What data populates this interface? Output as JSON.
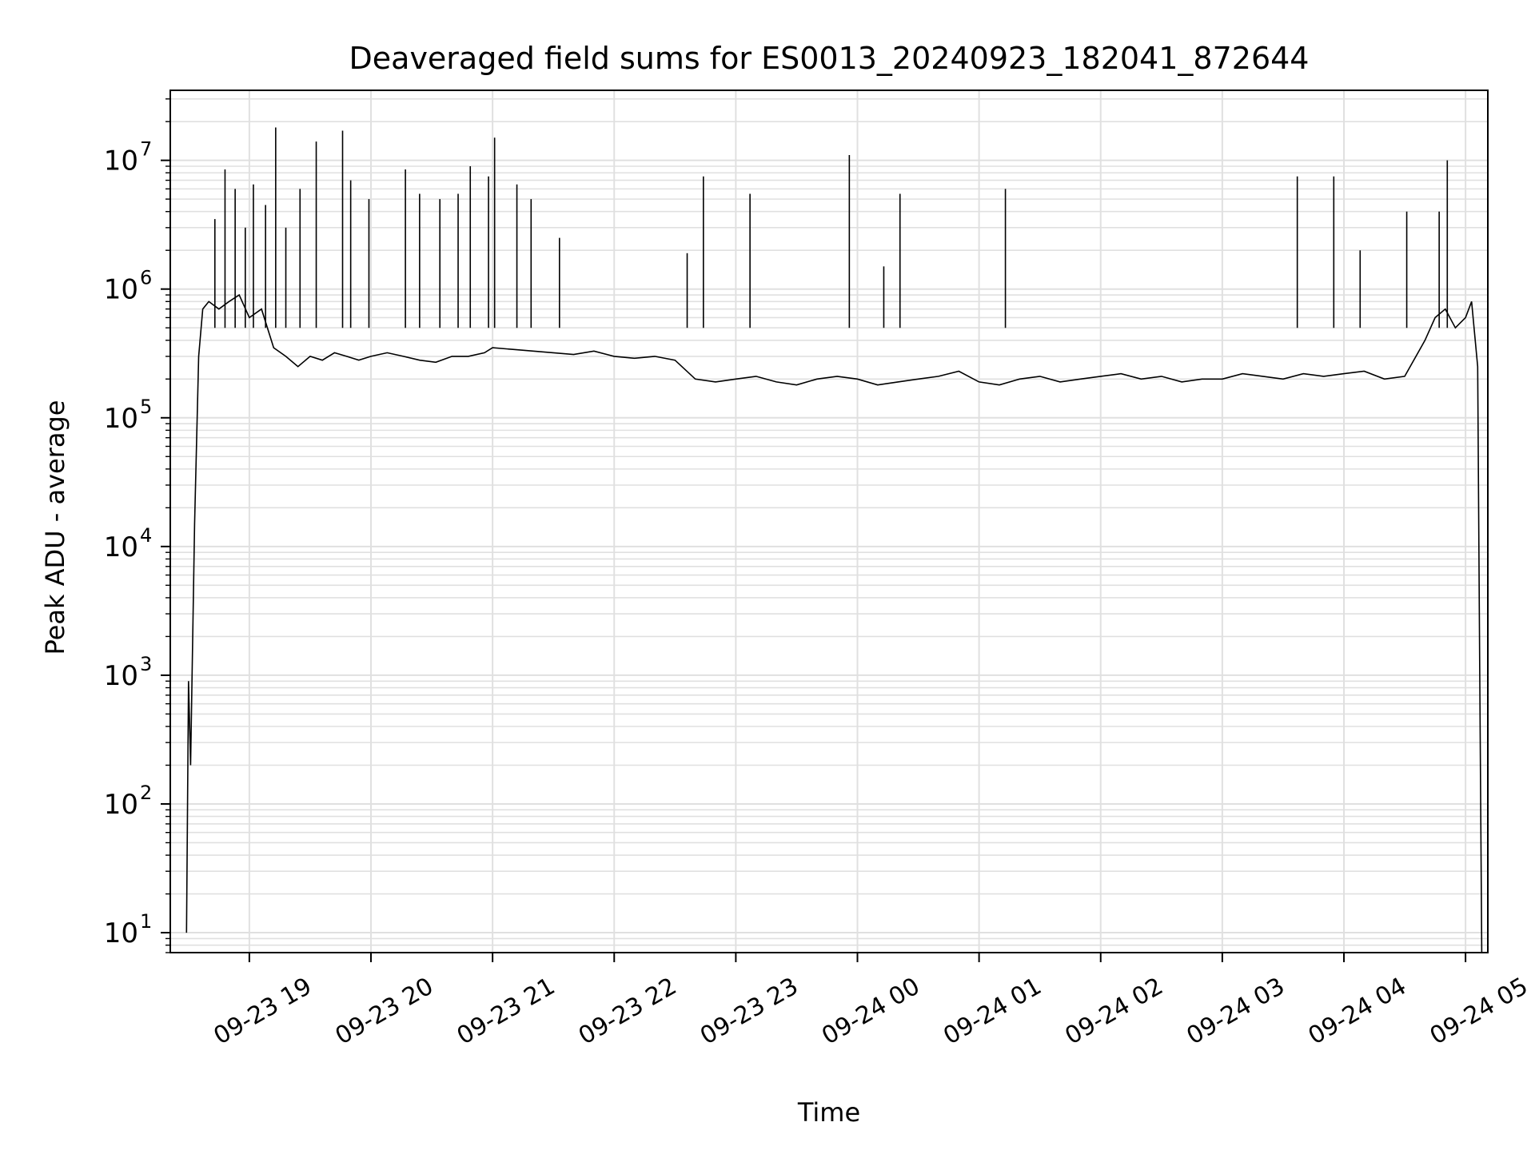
{
  "colors": {
    "line": "#000000",
    "grid": "#e0e0e0",
    "background": "#ffffff",
    "axes": "#000000"
  },
  "chart_data": {
    "type": "line",
    "title": "Deaveraged field sums for ES0013_20240923_182041_872644",
    "xlabel": "Time",
    "ylabel": "Peak ADU - average",
    "yscale": "log",
    "xlim": [
      "2024-09-23 18:21",
      "2024-09-24 05:11"
    ],
    "ylim": [
      7,
      35000000
    ],
    "grid": true,
    "legend": "none",
    "x_ticks": [
      {
        "t": "2024-09-23 19:00",
        "label": "09-23 19"
      },
      {
        "t": "2024-09-23 20:00",
        "label": "09-23 20"
      },
      {
        "t": "2024-09-23 21:00",
        "label": "09-23 21"
      },
      {
        "t": "2024-09-23 22:00",
        "label": "09-23 22"
      },
      {
        "t": "2024-09-23 23:00",
        "label": "09-23 23"
      },
      {
        "t": "2024-09-24 00:00",
        "label": "09-24 00"
      },
      {
        "t": "2024-09-24 01:00",
        "label": "09-24 01"
      },
      {
        "t": "2024-09-24 02:00",
        "label": "09-24 02"
      },
      {
        "t": "2024-09-24 03:00",
        "label": "09-24 03"
      },
      {
        "t": "2024-09-24 04:00",
        "label": "09-24 04"
      },
      {
        "t": "2024-09-24 05:00",
        "label": "09-24 05"
      }
    ],
    "y_ticks": [
      {
        "value": 10,
        "base": "10",
        "exp": "1"
      },
      {
        "value": 100,
        "base": "10",
        "exp": "2"
      },
      {
        "value": 1000,
        "base": "10",
        "exp": "3"
      },
      {
        "value": 10000,
        "base": "10",
        "exp": "4"
      },
      {
        "value": 100000,
        "base": "10",
        "exp": "5"
      },
      {
        "value": 1000000,
        "base": "10",
        "exp": "6"
      },
      {
        "value": 10000000,
        "base": "10",
        "exp": "7"
      }
    ],
    "series": [
      {
        "x": [
          "2024-09-23 18:29",
          "2024-09-23 18:30",
          "2024-09-23 18:31",
          "2024-09-23 18:33",
          "2024-09-23 18:35",
          "2024-09-23 18:37",
          "2024-09-23 18:40",
          "2024-09-23 18:45",
          "2024-09-23 18:50",
          "2024-09-23 18:55",
          "2024-09-23 19:00",
          "2024-09-23 19:06",
          "2024-09-23 19:12",
          "2024-09-23 19:18",
          "2024-09-23 19:24",
          "2024-09-23 19:30",
          "2024-09-23 19:36",
          "2024-09-23 19:42",
          "2024-09-23 19:48",
          "2024-09-23 19:54",
          "2024-09-23 20:00",
          "2024-09-23 20:08",
          "2024-09-23 20:16",
          "2024-09-23 20:24",
          "2024-09-23 20:32",
          "2024-09-23 20:40",
          "2024-09-23 20:48",
          "2024-09-23 20:56",
          "2024-09-23 21:00",
          "2024-09-23 21:10",
          "2024-09-23 21:20",
          "2024-09-23 21:30",
          "2024-09-23 21:40",
          "2024-09-23 21:50",
          "2024-09-23 22:00",
          "2024-09-23 22:10",
          "2024-09-23 22:20",
          "2024-09-23 22:30",
          "2024-09-23 22:40",
          "2024-09-23 22:50",
          "2024-09-23 23:00",
          "2024-09-23 23:10",
          "2024-09-23 23:20",
          "2024-09-23 23:30",
          "2024-09-23 23:40",
          "2024-09-23 23:50",
          "2024-09-24 00:00",
          "2024-09-24 00:10",
          "2024-09-24 00:20",
          "2024-09-24 00:30",
          "2024-09-24 00:40",
          "2024-09-24 00:50",
          "2024-09-24 01:00",
          "2024-09-24 01:10",
          "2024-09-24 01:20",
          "2024-09-24 01:30",
          "2024-09-24 01:40",
          "2024-09-24 01:50",
          "2024-09-24 02:00",
          "2024-09-24 02:10",
          "2024-09-24 02:20",
          "2024-09-24 02:30",
          "2024-09-24 02:40",
          "2024-09-24 02:50",
          "2024-09-24 03:00",
          "2024-09-24 03:10",
          "2024-09-24 03:20",
          "2024-09-24 03:30",
          "2024-09-24 03:40",
          "2024-09-24 03:50",
          "2024-09-24 04:00",
          "2024-09-24 04:10",
          "2024-09-24 04:20",
          "2024-09-24 04:30",
          "2024-09-24 04:40",
          "2024-09-24 04:45",
          "2024-09-24 04:50",
          "2024-09-24 04:55",
          "2024-09-24 05:00",
          "2024-09-24 05:03",
          "2024-09-24 05:06",
          "2024-09-24 05:07",
          "2024-09-24 05:08"
        ],
        "y": [
          10,
          900,
          200,
          15000,
          300000,
          700000,
          800000,
          700000,
          800000,
          900000,
          600000,
          700000,
          350000,
          300000,
          250000,
          300000,
          280000,
          320000,
          300000,
          280000,
          300000,
          320000,
          300000,
          280000,
          270000,
          300000,
          300000,
          320000,
          350000,
          340000,
          330000,
          320000,
          310000,
          330000,
          300000,
          290000,
          300000,
          280000,
          200000,
          190000,
          200000,
          210000,
          190000,
          180000,
          200000,
          210000,
          200000,
          180000,
          190000,
          200000,
          210000,
          230000,
          190000,
          180000,
          200000,
          210000,
          190000,
          200000,
          210000,
          220000,
          200000,
          210000,
          190000,
          200000,
          200000,
          220000,
          210000,
          200000,
          220000,
          210000,
          220000,
          230000,
          200000,
          210000,
          400000,
          600000,
          700000,
          500000,
          600000,
          800000,
          250000,
          1000,
          7
        ],
        "spikes": [
          {
            "x": "2024-09-23 18:43",
            "y": 3500000
          },
          {
            "x": "2024-09-23 18:48",
            "y": 8500000
          },
          {
            "x": "2024-09-23 18:53",
            "y": 6000000
          },
          {
            "x": "2024-09-23 18:58",
            "y": 3000000
          },
          {
            "x": "2024-09-23 19:02",
            "y": 6500000
          },
          {
            "x": "2024-09-23 19:08",
            "y": 4500000
          },
          {
            "x": "2024-09-23 19:13",
            "y": 18000000
          },
          {
            "x": "2024-09-23 19:18",
            "y": 3000000
          },
          {
            "x": "2024-09-23 19:25",
            "y": 6000000
          },
          {
            "x": "2024-09-23 19:33",
            "y": 14000000
          },
          {
            "x": "2024-09-23 19:46",
            "y": 17000000
          },
          {
            "x": "2024-09-23 19:50",
            "y": 7000000
          },
          {
            "x": "2024-09-23 19:59",
            "y": 5000000
          },
          {
            "x": "2024-09-23 20:17",
            "y": 8500000
          },
          {
            "x": "2024-09-23 20:24",
            "y": 5500000
          },
          {
            "x": "2024-09-23 20:34",
            "y": 5000000
          },
          {
            "x": "2024-09-23 20:43",
            "y": 5500000
          },
          {
            "x": "2024-09-23 20:49",
            "y": 9000000
          },
          {
            "x": "2024-09-23 20:58",
            "y": 7500000
          },
          {
            "x": "2024-09-23 21:01",
            "y": 15000000
          },
          {
            "x": "2024-09-23 21:12",
            "y": 6500000
          },
          {
            "x": "2024-09-23 21:19",
            "y": 5000000
          },
          {
            "x": "2024-09-23 21:33",
            "y": 2500000
          },
          {
            "x": "2024-09-23 22:36",
            "y": 1900000
          },
          {
            "x": "2024-09-23 22:44",
            "y": 7500000
          },
          {
            "x": "2024-09-23 23:07",
            "y": 5500000
          },
          {
            "x": "2024-09-23 23:56",
            "y": 11000000
          },
          {
            "x": "2024-09-24 00:21",
            "y": 5500000
          },
          {
            "x": "2024-09-24 00:13",
            "y": 1500000
          },
          {
            "x": "2024-09-24 01:13",
            "y": 6000000
          },
          {
            "x": "2024-09-24 03:37",
            "y": 7500000
          },
          {
            "x": "2024-09-24 03:55",
            "y": 7500000
          },
          {
            "x": "2024-09-24 04:08",
            "y": 2000000
          },
          {
            "x": "2024-09-24 04:31",
            "y": 4000000
          },
          {
            "x": "2024-09-24 04:47",
            "y": 4000000
          },
          {
            "x": "2024-09-24 04:51",
            "y": 10000000
          }
        ]
      }
    ]
  }
}
